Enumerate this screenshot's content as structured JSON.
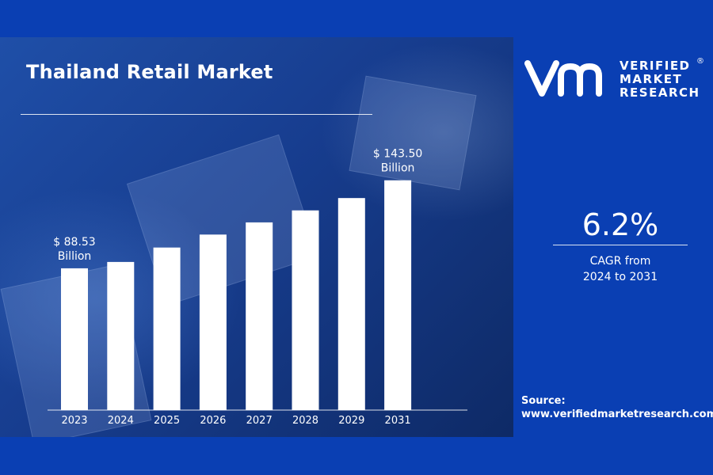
{
  "chart_data": {
    "type": "bar",
    "title": "Thailand Retail Market",
    "categories": [
      "2023",
      "2024",
      "2025",
      "2026",
      "2027",
      "2028",
      "2029",
      "2031"
    ],
    "values": [
      88.53,
      92.5,
      101.5,
      109.6,
      117.2,
      124.7,
      132.4,
      143.5
    ],
    "ylim": [
      0,
      160
    ],
    "grid": false,
    "bar_color": "#ffffff",
    "annotations": [
      {
        "category": "2023",
        "line1": "$ 88.53",
        "line2": "Billion"
      },
      {
        "category": "2031",
        "line1": "$ 143.50",
        "line2": "Billion"
      }
    ]
  },
  "brand": {
    "line1": "VERIFIED",
    "line2": "MARKET",
    "line3": "RESEARCH",
    "registered": "®"
  },
  "cagr": {
    "value": "6.2%",
    "label_line1": "CAGR from",
    "label_line2": "2024 to 2031"
  },
  "source": {
    "label": "Source:",
    "url": "www.verifiedmarketresearch.com"
  },
  "colors": {
    "background": "#0a3fb3",
    "panel": "#173d8f",
    "text": "#ffffff"
  }
}
